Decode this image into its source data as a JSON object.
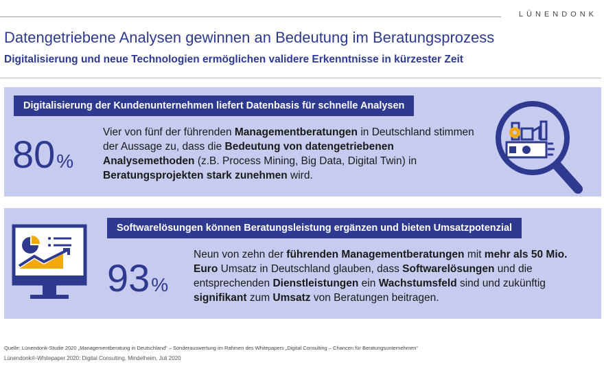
{
  "header": {
    "brand": "LÜNENDONK",
    "title": "Datengetriebene Analysen gewinnen an Bedeutung im Beratungsprozess",
    "subtitle": "Digitalisierung und neue Technologien ermöglichen validere Erkenntnisse in kürzester Zeit"
  },
  "panel1": {
    "heading": "Digitalisierung der Kundenunternehmen liefert Datenbasis für schnelle Analysen",
    "stat_number": "80",
    "stat_unit": "%",
    "text": [
      "Vier von fünf der führenden ",
      "Managementberatungen",
      " in Deutschland stimmen der Aussage zu, dass die ",
      "Bedeutung von datengetriebenen Analysemethoden",
      " (z.B. Process Mining, Big Data, Digital Twin) in ",
      "Beratungsprojekten stark zunehmen",
      " wird."
    ],
    "icon": "magnifier-analytics-icon"
  },
  "panel2": {
    "heading": "Softwarelösungen können Beratungsleistung ergänzen und bieten Umsatzpotenzial",
    "stat_number": "93",
    "stat_unit": "%",
    "text": [
      "Neun von zehn der ",
      "führenden Managementberatungen",
      " mit ",
      "mehr als 50 Mio. Euro",
      " Umsatz in Deutschland glauben, dass ",
      "Softwarelösungen",
      " und die entsprechenden ",
      "Dienstleistungen",
      " ein ",
      "Wachstumsfeld",
      " sind und zukünftig ",
      "signifikant",
      " zum ",
      "Umsatz",
      " von Beratungen beitragen."
    ],
    "icon": "monitor-dashboard-icon"
  },
  "footer": {
    "source": "Quelle: Lünendonk-Studie 2020 „Managementberatung in Deutschland“ – Sonderauswertung im Rahmen des Whitepapers „Digital Consulting – Chancen für Beratungsunternehmen“",
    "citation": "Lünendonk®-Whitepaper 2020: Digital Consulting, Mindelheim, Juli 2020"
  },
  "colors": {
    "primary": "#2e3990",
    "panel": "#c6cbef",
    "accent": "#f2a90f"
  }
}
